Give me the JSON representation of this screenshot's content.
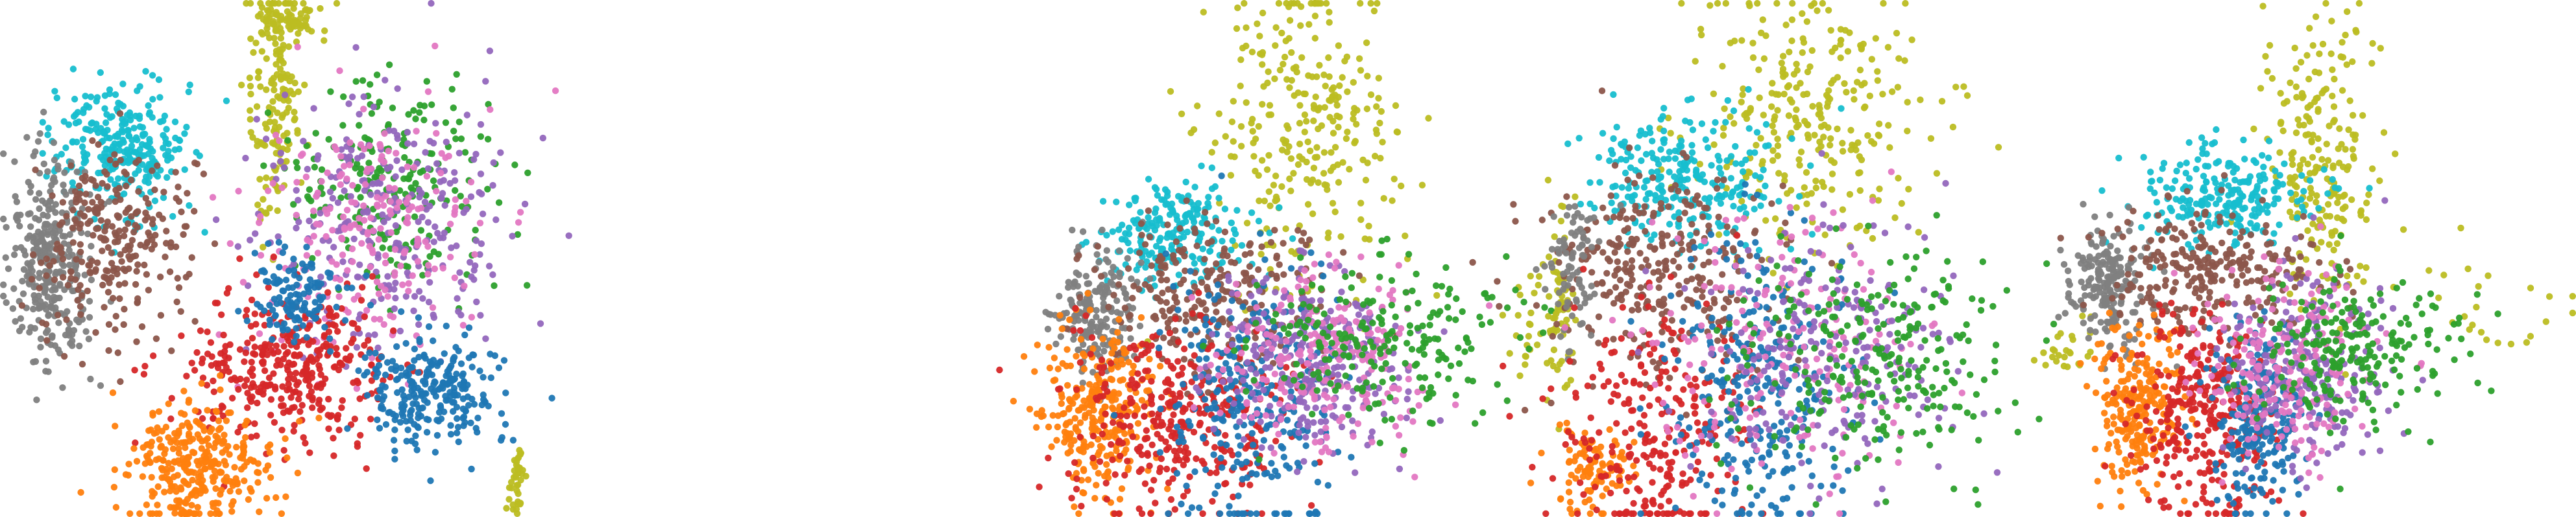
{
  "figure": {
    "panel_count": 4,
    "axes_visible": false
  },
  "chart_data": [
    {
      "type": "scatter",
      "panel": 1,
      "grid": false,
      "axes_visible": false,
      "series": [
        {
          "color": "#17becf",
          "clusters": [
            {
              "cx": 0.22,
              "cy": 0.72,
              "sx": 0.07,
              "sy": 0.07,
              "n": 280
            }
          ]
        },
        {
          "color": "#7f7f7f",
          "clusters": [
            {
              "cx": 0.09,
              "cy": 0.49,
              "sx": 0.045,
              "sy": 0.1,
              "n": 320
            }
          ]
        },
        {
          "color": "#8c564b",
          "clusters": [
            {
              "cx": 0.21,
              "cy": 0.53,
              "sx": 0.08,
              "sy": 0.09,
              "n": 260
            }
          ]
        },
        {
          "color": "#bcbd22",
          "clusters": [
            {
              "cx": 0.53,
              "cy": 0.83,
              "sx": 0.025,
              "sy": 0.12,
              "n": 160
            },
            {
              "cx": 0.56,
              "cy": 0.97,
              "sx": 0.035,
              "sy": 0.02,
              "n": 60
            },
            {
              "cx": 1.01,
              "cy": 0.06,
              "sx": 0.008,
              "sy": 0.04,
              "n": 40
            }
          ]
        },
        {
          "color": "#2ca02c",
          "clusters": [
            {
              "cx": 0.77,
              "cy": 0.65,
              "sx": 0.1,
              "sy": 0.1,
              "n": 220
            }
          ]
        },
        {
          "color": "#9467bd",
          "clusters": [
            {
              "cx": 0.75,
              "cy": 0.58,
              "sx": 0.12,
              "sy": 0.12,
              "n": 280
            }
          ]
        },
        {
          "color": "#e377c2",
          "clusters": [
            {
              "cx": 0.72,
              "cy": 0.55,
              "sx": 0.13,
              "sy": 0.12,
              "n": 220
            }
          ]
        },
        {
          "color": "#d62728",
          "clusters": [
            {
              "cx": 0.56,
              "cy": 0.28,
              "sx": 0.1,
              "sy": 0.08,
              "n": 360
            }
          ]
        },
        {
          "color": "#1f77b4",
          "clusters": [
            {
              "cx": 0.57,
              "cy": 0.42,
              "sx": 0.045,
              "sy": 0.05,
              "n": 120
            },
            {
              "cx": 0.84,
              "cy": 0.24,
              "sx": 0.065,
              "sy": 0.06,
              "n": 260
            }
          ]
        },
        {
          "color": "#ff7f0e",
          "clusters": [
            {
              "cx": 0.38,
              "cy": 0.09,
              "sx": 0.075,
              "sy": 0.065,
              "n": 320
            }
          ]
        }
      ]
    },
    {
      "type": "scatter",
      "panel": 2,
      "grid": false,
      "axes_visible": false,
      "series": [
        {
          "color": "#bcbd22",
          "clusters": [
            {
              "cx": 0.56,
              "cy": 0.74,
              "sx": 0.1,
              "sy": 0.15,
              "n": 280
            },
            {
              "cx": 1.05,
              "cy": 0.38,
              "sx": 0.025,
              "sy": 0.05,
              "n": 25
            }
          ]
        },
        {
          "color": "#17becf",
          "clusters": [
            {
              "cx": 0.3,
              "cy": 0.55,
              "sx": 0.08,
              "sy": 0.05,
              "n": 220
            }
          ]
        },
        {
          "color": "#7f7f7f",
          "clusters": [
            {
              "cx": 0.13,
              "cy": 0.4,
              "sx": 0.05,
              "sy": 0.07,
              "n": 200
            }
          ]
        },
        {
          "color": "#8c564b",
          "clusters": [
            {
              "cx": 0.38,
              "cy": 0.43,
              "sx": 0.12,
              "sy": 0.08,
              "n": 260
            }
          ]
        },
        {
          "color": "#ff7f0e",
          "clusters": [
            {
              "cx": 0.13,
              "cy": 0.19,
              "sx": 0.06,
              "sy": 0.08,
              "n": 280
            }
          ]
        },
        {
          "color": "#d62728",
          "clusters": [
            {
              "cx": 0.3,
              "cy": 0.18,
              "sx": 0.12,
              "sy": 0.1,
              "n": 340
            }
          ]
        },
        {
          "color": "#1f77b4",
          "clusters": [
            {
              "cx": 0.45,
              "cy": 0.22,
              "sx": 0.09,
              "sy": 0.14,
              "n": 280
            }
          ]
        },
        {
          "color": "#9467bd",
          "clusters": [
            {
              "cx": 0.58,
              "cy": 0.3,
              "sx": 0.1,
              "sy": 0.09,
              "n": 280
            }
          ]
        },
        {
          "color": "#e377c2",
          "clusters": [
            {
              "cx": 0.62,
              "cy": 0.3,
              "sx": 0.12,
              "sy": 0.09,
              "n": 220
            }
          ]
        },
        {
          "color": "#2ca02c",
          "clusters": [
            {
              "cx": 0.72,
              "cy": 0.34,
              "sx": 0.14,
              "sy": 0.08,
              "n": 220
            }
          ]
        }
      ]
    },
    {
      "type": "scatter",
      "panel": 3,
      "grid": false,
      "axes_visible": false,
      "series": [
        {
          "color": "#bcbd22",
          "clusters": [
            {
              "cx": 0.55,
              "cy": 0.78,
              "sx": 0.12,
              "sy": 0.13,
              "n": 280
            },
            {
              "cx": 0.02,
              "cy": 0.4,
              "sx": 0.015,
              "sy": 0.12,
              "n": 60
            },
            {
              "cx": 1.1,
              "cy": 0.32,
              "sx": 0.03,
              "sy": 0.03,
              "n": 25
            }
          ]
        },
        {
          "color": "#17becf",
          "clusters": [
            {
              "cx": 0.28,
              "cy": 0.65,
              "sx": 0.1,
              "sy": 0.07,
              "n": 260
            }
          ]
        },
        {
          "color": "#8c564b",
          "clusters": [
            {
              "cx": 0.22,
              "cy": 0.47,
              "sx": 0.12,
              "sy": 0.1,
              "n": 300
            }
          ]
        },
        {
          "color": "#7f7f7f",
          "clusters": [
            {
              "cx": 0.05,
              "cy": 0.5,
              "sx": 0.03,
              "sy": 0.08,
              "n": 80
            }
          ]
        },
        {
          "color": "#ff7f0e",
          "clusters": [
            {
              "cx": 0.08,
              "cy": 0.08,
              "sx": 0.04,
              "sy": 0.05,
              "n": 100
            }
          ]
        },
        {
          "color": "#d62728",
          "clusters": [
            {
              "cx": 0.22,
              "cy": 0.16,
              "sx": 0.1,
              "sy": 0.12,
              "n": 260
            }
          ]
        },
        {
          "color": "#1f77b4",
          "clusters": [
            {
              "cx": 0.45,
              "cy": 0.25,
              "sx": 0.1,
              "sy": 0.15,
              "n": 280
            }
          ]
        },
        {
          "color": "#e377c2",
          "clusters": [
            {
              "cx": 0.5,
              "cy": 0.32,
              "sx": 0.14,
              "sy": 0.13,
              "n": 200
            }
          ]
        },
        {
          "color": "#9467bd",
          "clusters": [
            {
              "cx": 0.6,
              "cy": 0.32,
              "sx": 0.13,
              "sy": 0.12,
              "n": 220
            }
          ]
        },
        {
          "color": "#2ca02c",
          "clusters": [
            {
              "cx": 0.7,
              "cy": 0.3,
              "sx": 0.15,
              "sy": 0.12,
              "n": 260
            }
          ]
        }
      ]
    },
    {
      "type": "scatter",
      "panel": 4,
      "grid": false,
      "axes_visible": false,
      "series": [
        {
          "color": "#bcbd22",
          "clusters": [
            {
              "cx": 0.55,
              "cy": 0.7,
              "sx": 0.06,
              "sy": 0.14,
              "n": 220
            },
            {
              "cx": 0.92,
              "cy": 0.4,
              "sx": 0.1,
              "sy": 0.08,
              "n": 25
            }
          ]
        },
        {
          "color": "#17becf",
          "clusters": [
            {
              "cx": 0.35,
              "cy": 0.62,
              "sx": 0.1,
              "sy": 0.05,
              "n": 240
            }
          ]
        },
        {
          "color": "#7f7f7f",
          "clusters": [
            {
              "cx": 0.1,
              "cy": 0.45,
              "sx": 0.04,
              "sy": 0.06,
              "n": 200
            }
          ]
        },
        {
          "color": "#8c564b",
          "clusters": [
            {
              "cx": 0.33,
              "cy": 0.48,
              "sx": 0.12,
              "sy": 0.06,
              "n": 260
            }
          ]
        },
        {
          "color": "#ff7f0e",
          "clusters": [
            {
              "cx": 0.15,
              "cy": 0.2,
              "sx": 0.05,
              "sy": 0.08,
              "n": 240
            }
          ]
        },
        {
          "color": "#d62728",
          "clusters": [
            {
              "cx": 0.3,
              "cy": 0.2,
              "sx": 0.08,
              "sy": 0.1,
              "n": 320
            }
          ]
        },
        {
          "color": "#1f77b4",
          "clusters": [
            {
              "cx": 0.42,
              "cy": 0.18,
              "sx": 0.05,
              "sy": 0.1,
              "n": 220
            }
          ]
        },
        {
          "color": "#9467bd",
          "clusters": [
            {
              "cx": 0.52,
              "cy": 0.28,
              "sx": 0.08,
              "sy": 0.1,
              "n": 240
            }
          ]
        },
        {
          "color": "#e377c2",
          "clusters": [
            {
              "cx": 0.48,
              "cy": 0.3,
              "sx": 0.09,
              "sy": 0.1,
              "n": 200
            }
          ]
        },
        {
          "color": "#2ca02c",
          "clusters": [
            {
              "cx": 0.62,
              "cy": 0.32,
              "sx": 0.1,
              "sy": 0.08,
              "n": 220
            }
          ]
        }
      ]
    }
  ]
}
